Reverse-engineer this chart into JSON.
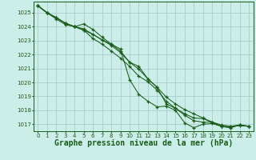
{
  "bg_color": "#cceee8",
  "grid_color": "#aacccc",
  "line_color": "#1a5c1a",
  "xlabel": "Graphe pression niveau de la mer (hPa)",
  "xlabel_fontsize": 7.0,
  "xlim": [
    -0.5,
    23.5
  ],
  "ylim": [
    1016.5,
    1025.8
  ],
  "yticks": [
    1017,
    1018,
    1019,
    1020,
    1021,
    1022,
    1023,
    1024,
    1025
  ],
  "xtick_labels": [
    "0",
    "1",
    "2",
    "3",
    "4",
    "5",
    "6",
    "7",
    "8",
    "9",
    "10",
    "11",
    "12",
    "13",
    "14",
    "15",
    "16",
    "17",
    "18",
    "19",
    "20",
    "21",
    "22",
    "23"
  ],
  "tick_fontsize": 5.0,
  "series": [
    [
      1025.5,
      1025.0,
      1024.55,
      1024.15,
      1024.0,
      1024.2,
      1023.8,
      1023.25,
      1022.75,
      1022.4,
      1020.2,
      1019.15,
      1018.65,
      1018.25,
      1018.3,
      1018.0,
      1017.1,
      1016.75,
      1017.0,
      1017.05,
      1016.85,
      1016.85,
      1016.9,
      1016.85
    ],
    [
      1025.5,
      1025.0,
      1024.65,
      1024.25,
      1024.0,
      1023.75,
      1023.45,
      1023.05,
      1022.65,
      1022.15,
      1021.45,
      1021.15,
      1020.25,
      1019.65,
      1018.45,
      1018.15,
      1017.75,
      1017.45,
      1017.4,
      1017.15,
      1016.85,
      1016.75,
      1016.95,
      1016.85
    ],
    [
      1025.5,
      1025.0,
      1024.65,
      1024.25,
      1024.0,
      1023.75,
      1023.15,
      1022.75,
      1022.25,
      1021.75,
      1021.15,
      1020.45,
      1020.05,
      1019.45,
      1018.65,
      1018.15,
      1017.65,
      1017.25,
      1017.15,
      1017.15,
      1016.85,
      1016.75,
      1016.95,
      1016.85
    ],
    [
      1025.5,
      1025.0,
      1024.65,
      1024.25,
      1024.0,
      1023.85,
      1023.45,
      1023.05,
      1022.75,
      1022.25,
      1021.45,
      1020.95,
      1020.25,
      1019.65,
      1018.95,
      1018.45,
      1018.05,
      1017.75,
      1017.45,
      1017.15,
      1016.95,
      1016.85,
      1016.95,
      1016.85
    ]
  ]
}
